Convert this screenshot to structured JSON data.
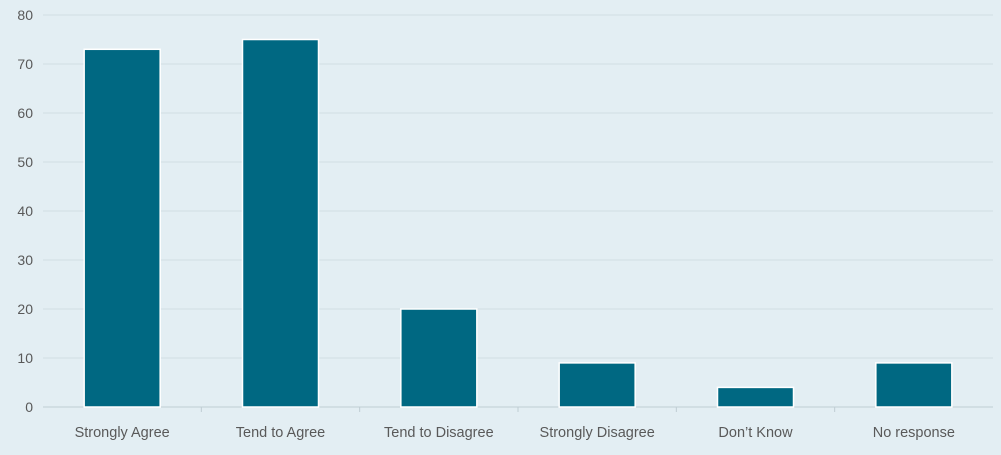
{
  "chart_data": {
    "type": "bar",
    "title": "",
    "xlabel": "",
    "ylabel": "",
    "categories": [
      "Strongly Agree",
      "Tend to Agree",
      "Tend to Disagree",
      "Strongly Disagree",
      "Don’t Know",
      "No response"
    ],
    "values": [
      73,
      75,
      20,
      9,
      4,
      9
    ],
    "ylim": [
      0,
      80
    ],
    "yticks": [
      0,
      10,
      20,
      30,
      40,
      50,
      60,
      70,
      80
    ],
    "grid": true,
    "legend": "none",
    "colors": {
      "bar": "#006882",
      "bar_edge": "#ffffff",
      "gridline": "#d0dde3",
      "background": "#e3eef3",
      "axis_line": "#bfcdd3"
    }
  }
}
